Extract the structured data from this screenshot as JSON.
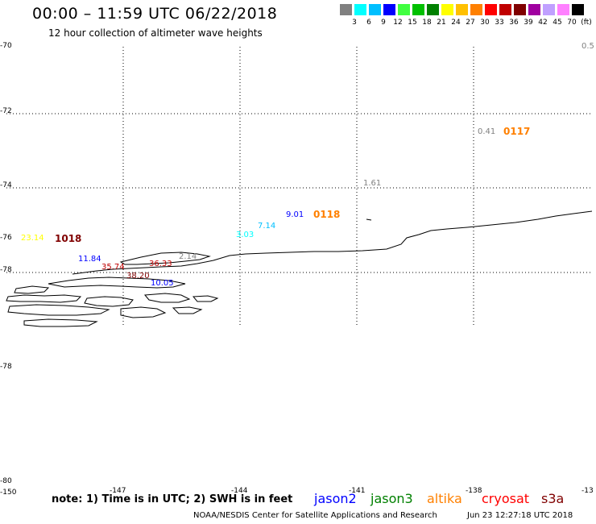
{
  "title": "00:00 – 11:59 UTC 06/22/2018",
  "subtitle": "12 hour collection of altimeter wave heights",
  "color_scale": {
    "colors": [
      "#808080",
      "#00ffff",
      "#00bfff",
      "#0000ff",
      "#40ff40",
      "#00c000",
      "#008000",
      "#ffff00",
      "#ffc000",
      "#ff8000",
      "#ff0000",
      "#c00000",
      "#800000",
      "#a000a0",
      "#c0a0ff",
      "#ff80ff",
      "#000000"
    ],
    "labels": [
      "3",
      "6",
      "9",
      "12",
      "15",
      "18",
      "21",
      "24",
      "27",
      "30",
      "33",
      "36",
      "39",
      "42",
      "45",
      "70",
      "(ft)"
    ]
  },
  "lat_labels": [
    "-70",
    "-72",
    "-74",
    "-76",
    "-78",
    "-78",
    "-80"
  ],
  "lon_labels": [
    "-150",
    "-147",
    "-144",
    "-141",
    "-138",
    "-13"
  ],
  "corner_label": "0.5",
  "wave_points": [
    {
      "text": "0.41",
      "color": "#808080"
    },
    {
      "text": "1.61",
      "color": "#808080"
    },
    {
      "text": "9.01",
      "color": "#0000ff"
    },
    {
      "text": "7.14",
      "color": "#00bfff"
    },
    {
      "text": "3.03",
      "color": "#00ffff"
    },
    {
      "text": "23.14",
      "color": "#ffff00"
    },
    {
      "text": "11.84",
      "color": "#0000ff"
    },
    {
      "text": "35.74",
      "color": "#c00000"
    },
    {
      "text": "36.33",
      "color": "#c00000"
    },
    {
      "text": "2.14",
      "color": "#808080"
    },
    {
      "text": "10.05",
      "color": "#0000ff"
    },
    {
      "text": "38.20",
      "color": "#800000"
    }
  ],
  "time_labels": [
    {
      "text": "0117",
      "color": "#ff8000"
    },
    {
      "text": "0118",
      "color": "#ff8000"
    },
    {
      "text": "1018",
      "color": "#800000"
    }
  ],
  "note": "note:  1) Time is in UTC;  2) SWH is in feet",
  "satellites": [
    {
      "name": "jason2",
      "color": "#0000ff"
    },
    {
      "name": "jason3",
      "color": "#008000"
    },
    {
      "name": "altika",
      "color": "#ff8000"
    },
    {
      "name": "cryosat",
      "color": "#ff0000"
    },
    {
      "name": "s3a",
      "color": "#800000"
    }
  ],
  "credit": "NOAA/NESDIS Center for Satellite Applications and Research",
  "timestamp": "Jun 23 12:27:18 UTC 2018"
}
